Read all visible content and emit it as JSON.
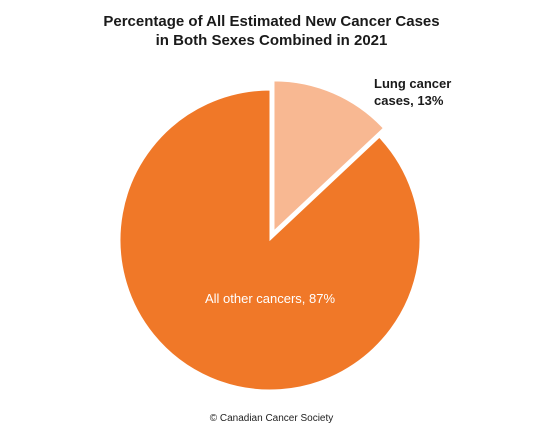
{
  "chart_data": {
    "type": "pie",
    "title_lines": [
      "Percentage of All Estimated New Cancer Cases",
      "in Both Sexes Combined in 2021"
    ],
    "slices": [
      {
        "label": "Lung cancer cases, 13%",
        "label_lines": [
          "Lung cancer",
          "cases, 13%"
        ],
        "value": 13,
        "color": "#F8B892",
        "exploded": true
      },
      {
        "label": "All other cancers, 87%",
        "label_lines": [
          "All other cancers, 87%"
        ],
        "value": 87,
        "color": "#F07828",
        "exploded": false
      }
    ],
    "start_angle": "12 o'clock, clockwise",
    "legend": "none (labels on chart)"
  },
  "footer": {
    "copyright": "© Canadian Cancer Society"
  }
}
